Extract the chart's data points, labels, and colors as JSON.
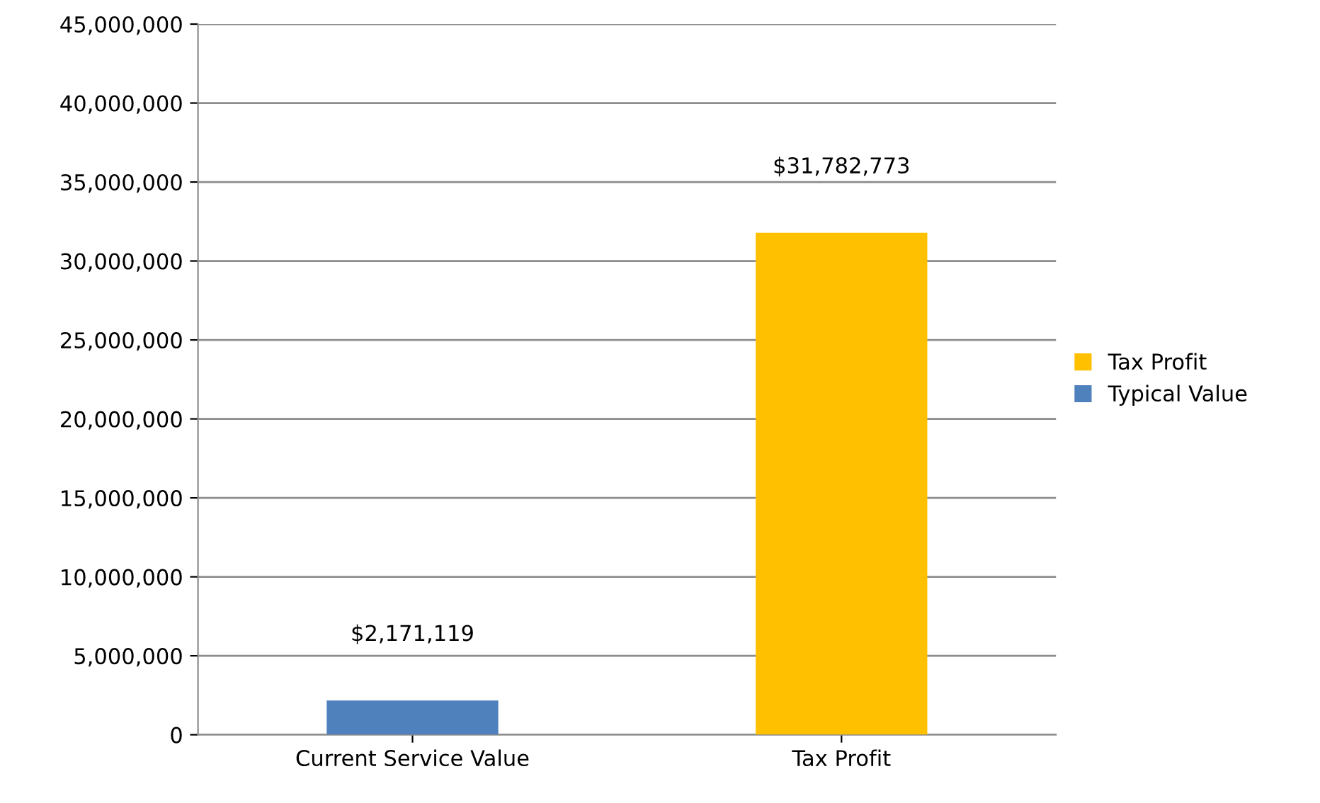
{
  "chart_data": {
    "type": "bar",
    "stacked": true,
    "categories": [
      "Current Service Value",
      "Tax Profit"
    ],
    "series": [
      {
        "name": "Typical Value",
        "color": "#4f81bd",
        "values": [
          2171119,
          null
        ],
        "value_labels": [
          "$2,171,119",
          null
        ]
      },
      {
        "name": "Tax Profit",
        "color": "#ffc000",
        "values": [
          null,
          31782773
        ],
        "value_labels": [
          null,
          "$31,782,773"
        ]
      }
    ],
    "ylim": [
      0,
      45000000
    ],
    "yticks": [
      {
        "value": 0,
        "label": "0"
      },
      {
        "value": 5000000,
        "label": "5,000,000"
      },
      {
        "value": 10000000,
        "label": "10,000,000"
      },
      {
        "value": 15000000,
        "label": "15,000,000"
      },
      {
        "value": 20000000,
        "label": "20,000,000"
      },
      {
        "value": 25000000,
        "label": "25,000,000"
      },
      {
        "value": 30000000,
        "label": "30,000,000"
      },
      {
        "value": 35000000,
        "label": "35,000,000"
      },
      {
        "value": 40000000,
        "label": "40,000,000"
      },
      {
        "value": 45000000,
        "label": "45,000,000"
      }
    ],
    "grid": "y",
    "legend": "right"
  }
}
